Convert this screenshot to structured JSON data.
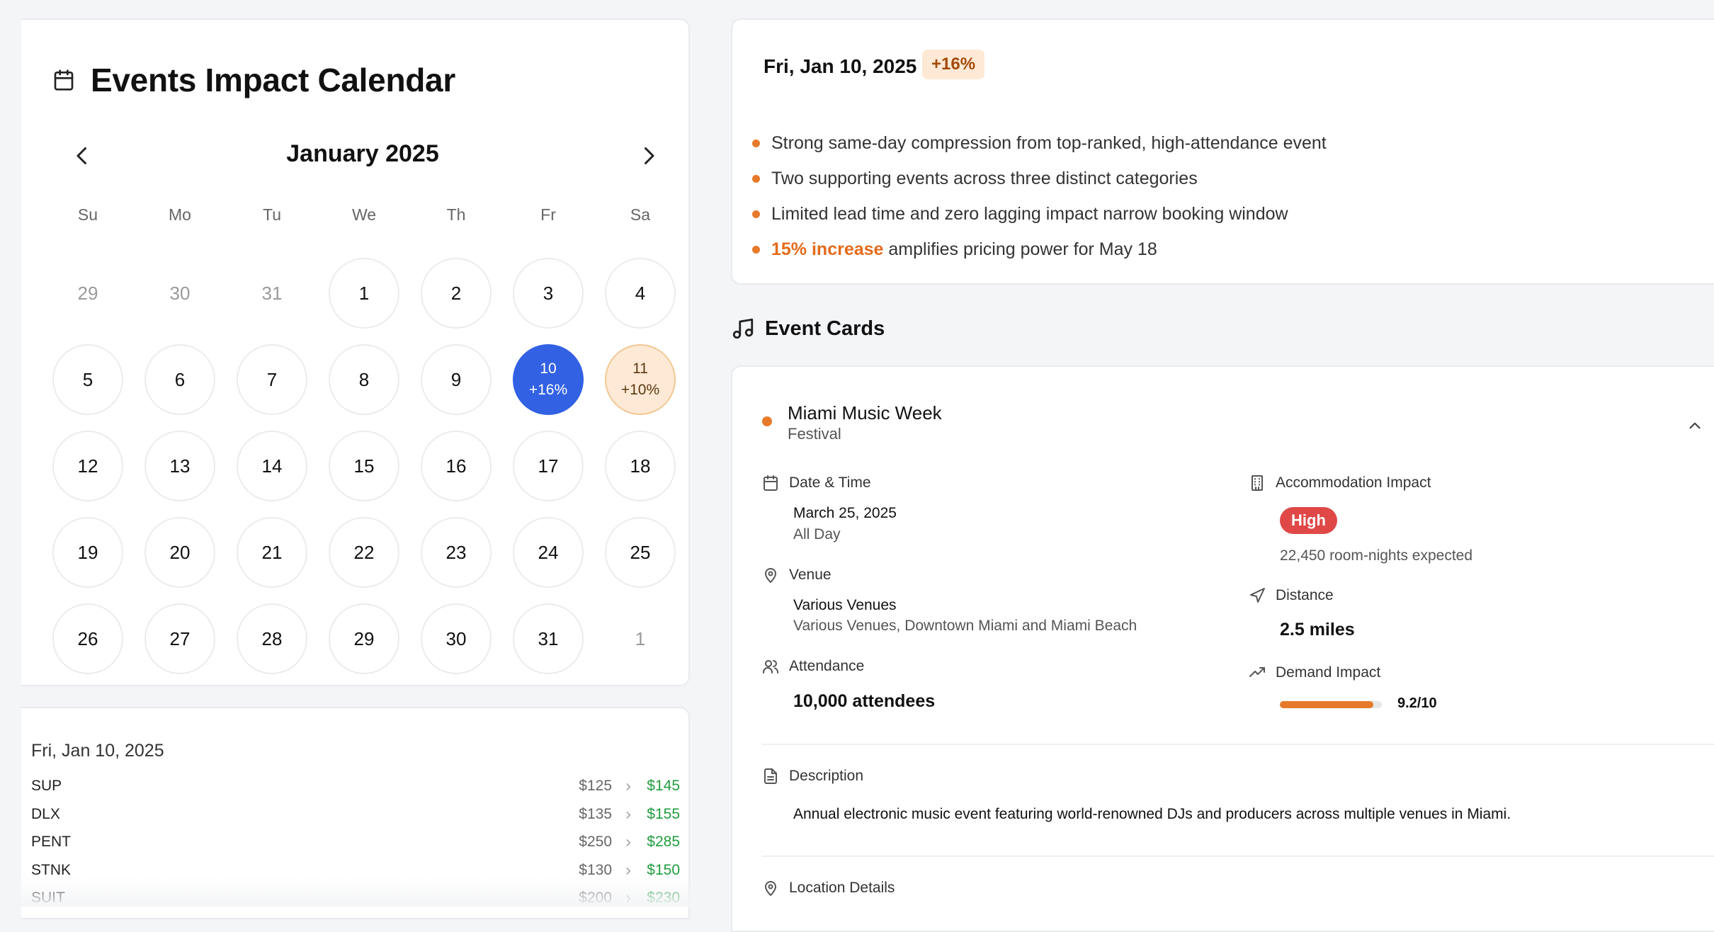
{
  "calendar": {
    "title": "Events Impact Calendar",
    "month_label": "January 2025",
    "weekdays": [
      "Su",
      "Mo",
      "Tu",
      "We",
      "Th",
      "Fr",
      "Sa"
    ],
    "weeks": [
      [
        {
          "d": "29",
          "muted": true
        },
        {
          "d": "30",
          "muted": true
        },
        {
          "d": "31",
          "muted": true
        },
        {
          "d": "1"
        },
        {
          "d": "2"
        },
        {
          "d": "3"
        },
        {
          "d": "4"
        }
      ],
      [
        {
          "d": "5"
        },
        {
          "d": "6"
        },
        {
          "d": "7"
        },
        {
          "d": "8"
        },
        {
          "d": "9"
        },
        {
          "d": "10",
          "pct": "+16%",
          "state": "selected"
        },
        {
          "d": "11",
          "pct": "+10%",
          "state": "impact"
        }
      ],
      [
        {
          "d": "12"
        },
        {
          "d": "13"
        },
        {
          "d": "14"
        },
        {
          "d": "15"
        },
        {
          "d": "16"
        },
        {
          "d": "17"
        },
        {
          "d": "18"
        }
      ],
      [
        {
          "d": "19"
        },
        {
          "d": "20"
        },
        {
          "d": "21"
        },
        {
          "d": "22"
        },
        {
          "d": "23"
        },
        {
          "d": "24"
        },
        {
          "d": "25"
        }
      ],
      [
        {
          "d": "26"
        },
        {
          "d": "27"
        },
        {
          "d": "28"
        },
        {
          "d": "29"
        },
        {
          "d": "30"
        },
        {
          "d": "31"
        },
        {
          "d": "1",
          "muted": true
        }
      ]
    ]
  },
  "rates": {
    "date": "Fri, Jan 10, 2025",
    "rows": [
      {
        "code": "SUP",
        "old": "$125",
        "new": "$145"
      },
      {
        "code": "DLX",
        "old": "$135",
        "new": "$155"
      },
      {
        "code": "PENT",
        "old": "$250",
        "new": "$285"
      },
      {
        "code": "STNK",
        "old": "$130",
        "new": "$150"
      },
      {
        "code": "SUIT",
        "old": "$200",
        "new": "$230"
      }
    ]
  },
  "summary": {
    "date": "Fri, Jan 10, 2025",
    "badge": "+16%",
    "bullets": [
      {
        "text": "Strong same-day compression from top-ranked, high-attendance event"
      },
      {
        "text": "Two supporting events across three distinct categories"
      },
      {
        "text": "Limited lead time and zero lagging impact narrow booking window"
      },
      {
        "highlight": "15% increase",
        "text": " amplifies pricing power for May 18"
      }
    ]
  },
  "event_cards": {
    "title": "Event Cards",
    "event": {
      "name": "Miami Music Week",
      "category": "Festival",
      "date_label": "Date & Time",
      "date": "March 25, 2025",
      "time": "All Day",
      "venue_label": "Venue",
      "venue": "Various Venues",
      "venue_address": "Various Venues, Downtown Miami and Miami Beach",
      "attendance_label": "Attendance",
      "attendance": "10,000 attendees",
      "accommodation_label": "Accommodation Impact",
      "accommodation_level": "High",
      "room_nights": "22,450 room-nights expected",
      "distance_label": "Distance",
      "distance": "2.5 miles",
      "demand_label": "Demand Impact",
      "demand_score": 9.2,
      "demand_max": 10,
      "demand_text": "9.2/10",
      "description_label": "Description",
      "description": "Annual electronic music event featuring world-renowned DJs and producers across multiple venues in Miami.",
      "location_label": "Location Details"
    }
  },
  "colors": {
    "selected": "#3261e4",
    "impact_soft": "#fde9d5",
    "accent": "#e67a2a",
    "positive": "#1f9d3d",
    "high": "#e04848"
  }
}
